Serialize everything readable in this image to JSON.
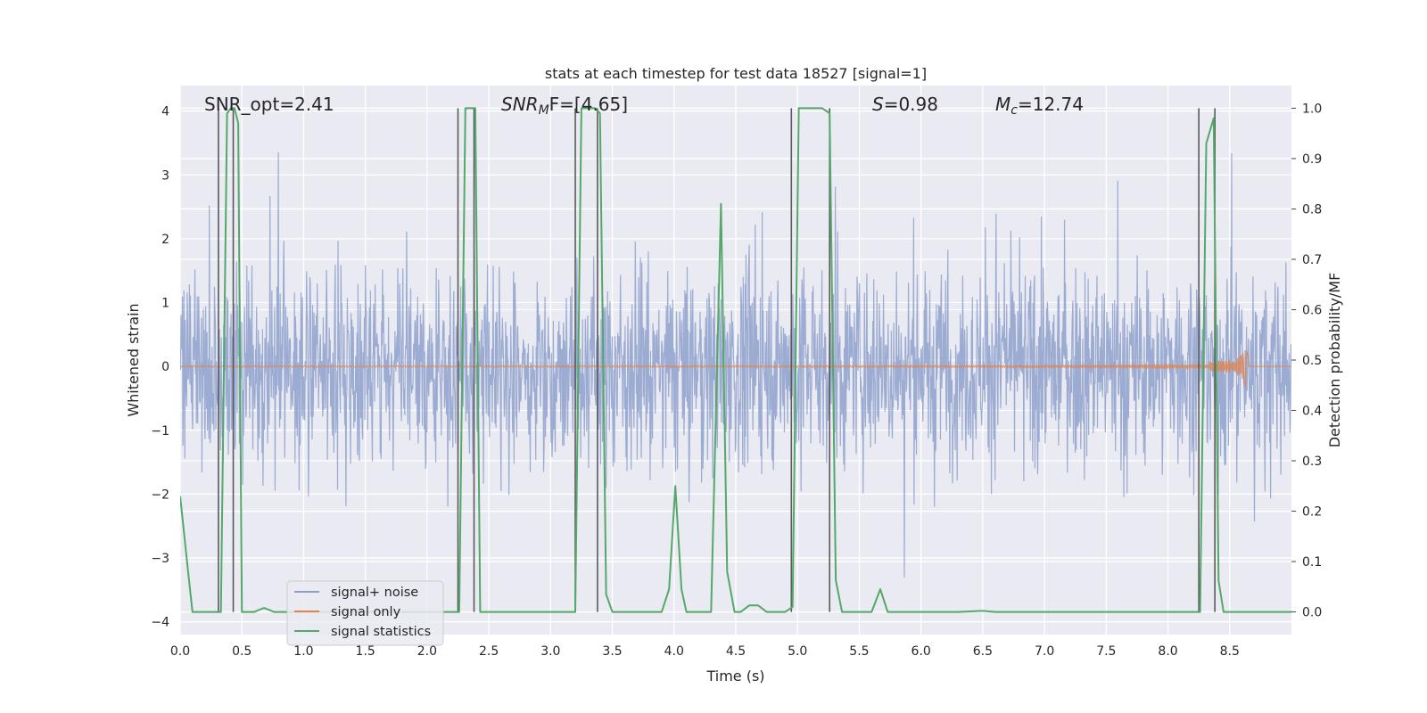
{
  "chart_data": {
    "type": "line",
    "title": "stats at each timestep for test data 18527 [signal=1]",
    "xlabel": "Time (s)",
    "ylabel": "Whitened strain",
    "ylabel_right": "Detection probability/MF",
    "xlim": [
      0.0,
      9.0
    ],
    "ylim": [
      -4.2,
      4.4
    ],
    "ylim_right": [
      -0.045,
      1.045
    ],
    "x_ticks": [
      0.0,
      0.5,
      1.0,
      1.5,
      2.0,
      2.5,
      3.0,
      3.5,
      4.0,
      4.5,
      5.0,
      5.5,
      6.0,
      6.5,
      7.0,
      7.5,
      8.0,
      8.5
    ],
    "x_tick_labels": [
      "0.0",
      "0.5",
      "1.0",
      "1.5",
      "2.0",
      "2.5",
      "3.0",
      "3.5",
      "4.0",
      "4.5",
      "5.0",
      "5.5",
      "6.0",
      "6.5",
      "7.0",
      "7.5",
      "8.0",
      "8.5"
    ],
    "y_ticks": [
      -4,
      -3,
      -2,
      -1,
      0,
      1,
      2,
      3,
      4
    ],
    "y_tick_labels": [
      "−4",
      "−3",
      "−2",
      "−1",
      "0",
      "1",
      "2",
      "3",
      "4"
    ],
    "y_right_ticks": [
      0.0,
      0.1,
      0.2,
      0.3,
      0.4,
      0.5,
      0.6,
      0.7,
      0.8,
      0.9,
      1.0
    ],
    "y_right_tick_labels": [
      "0.0",
      "0.1",
      "0.2",
      "0.3",
      "0.4",
      "0.5",
      "0.6",
      "0.7",
      "0.8",
      "0.9",
      "1.0"
    ],
    "annotations": {
      "snr_opt": "SNR_opt=2.41",
      "snr_mf_main": "SNR",
      "snr_mf_sub": "M",
      "snr_mf_rest": "F=[4.65]",
      "s_main": "S",
      "s_rest": "=0.98",
      "mc_main": "M",
      "mc_sub": "c",
      "mc_rest": "=12.74"
    },
    "legend": {
      "position": "lower-left",
      "entries": [
        "signal+ noise",
        "signal only",
        "signal statistics"
      ]
    },
    "series": [
      {
        "name": "signal statistics",
        "axis": "right",
        "color": "#55a868",
        "x": [
          0.0,
          0.06,
          0.1,
          0.15,
          0.2,
          0.25,
          0.3,
          0.33,
          0.38,
          0.41,
          0.44,
          0.47,
          0.5,
          0.55,
          0.6,
          0.68,
          0.76,
          0.85,
          1.0,
          1.3,
          1.6,
          1.9,
          2.1,
          2.22,
          2.26,
          2.31,
          2.36,
          2.39,
          2.43,
          2.5,
          2.6,
          2.8,
          3.0,
          3.15,
          3.2,
          3.25,
          3.3,
          3.36,
          3.4,
          3.45,
          3.5,
          3.6,
          3.8,
          3.9,
          3.96,
          4.01,
          4.06,
          4.1,
          4.2,
          4.3,
          4.38,
          4.43,
          4.49,
          4.54,
          4.61,
          4.68,
          4.75,
          4.82,
          4.9,
          4.96,
          5.01,
          5.05,
          5.1,
          5.15,
          5.2,
          5.26,
          5.31,
          5.36,
          5.4,
          5.45,
          5.52,
          5.6,
          5.67,
          5.73,
          5.8,
          5.9,
          6.0,
          6.3,
          6.5,
          6.6,
          7.0,
          7.5,
          8.0,
          8.2,
          8.26,
          8.31,
          8.37,
          8.41,
          8.45,
          8.5,
          8.6,
          9.0
        ],
        "y": [
          0.23,
          0.09,
          0.0,
          0.0,
          0.0,
          0.0,
          0.0,
          0.0,
          0.99,
          1.0,
          1.0,
          0.97,
          0.0,
          0.0,
          0.0,
          0.008,
          0.0,
          0.0,
          0.0,
          0.0,
          0.0,
          0.0,
          0.0,
          0.0,
          0.0,
          1.0,
          1.0,
          1.0,
          0.0,
          0.0,
          0.0,
          0.0,
          0.0,
          0.0,
          0.0,
          1.0,
          1.0,
          1.0,
          0.99,
          0.035,
          0.0,
          0.0,
          0.0,
          0.0,
          0.045,
          0.25,
          0.045,
          0.0,
          0.0,
          0.0,
          0.81,
          0.08,
          0.0,
          0.0,
          0.013,
          0.013,
          0.0,
          0.0,
          0.0,
          0.01,
          1.0,
          1.0,
          1.0,
          1.0,
          1.0,
          0.99,
          0.063,
          0.0,
          0.0,
          0.0,
          0.0,
          0.0,
          0.045,
          0.0,
          0.0,
          0.0,
          0.0,
          0.0,
          0.002,
          0.0,
          0.0,
          0.0,
          0.0,
          0.0,
          0.0,
          0.93,
          0.98,
          0.062,
          0.0,
          0.0,
          0.0,
          0.0
        ]
      },
      {
        "name": "signal only",
        "axis": "left",
        "color": "#dd8452",
        "note": "chirp waveform growing near merger at ~8.64 s"
      },
      {
        "name": "signal+ noise",
        "axis": "left",
        "color": "#8da0cb",
        "note": "whitened noisy strain, dense trace spanning roughly -3.7 to 4.0"
      }
    ],
    "vertical_lines": [
      0.31,
      0.43,
      2.25,
      2.38,
      3.2,
      3.38,
      4.95,
      5.26,
      8.25,
      8.38
    ]
  }
}
